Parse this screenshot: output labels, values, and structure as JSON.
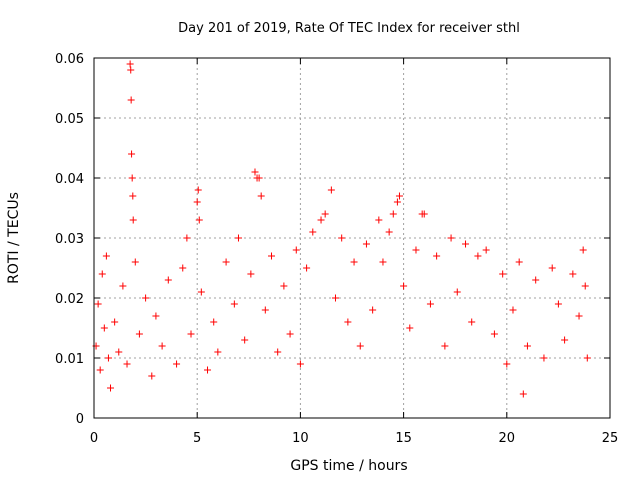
{
  "chart_data": {
    "type": "scatter",
    "title": "Day 201 of 2019, Rate Of TEC Index for receiver sthl",
    "xlabel": "GPS time / hours",
    "ylabel": "ROTI / TECUs",
    "xlim": [
      0,
      25
    ],
    "ylim": [
      0,
      0.06
    ],
    "x_ticks": [
      0,
      5,
      10,
      15,
      20,
      25
    ],
    "x_tick_labels": [
      "0",
      "5",
      "10",
      "15",
      "20",
      "25"
    ],
    "y_ticks": [
      0,
      0.01,
      0.02,
      0.03,
      0.04,
      0.05,
      0.06
    ],
    "y_tick_labels": [
      "0",
      "0.01",
      "0.02",
      "0.03",
      "0.04",
      "0.05",
      "0.06"
    ],
    "grid": true,
    "marker": "+",
    "series": [
      {
        "name": "ROTI",
        "color": "#ff0000",
        "points": [
          [
            0.1,
            0.012
          ],
          [
            0.2,
            0.019
          ],
          [
            0.3,
            0.008
          ],
          [
            0.4,
            0.024
          ],
          [
            0.5,
            0.015
          ],
          [
            0.6,
            0.027
          ],
          [
            0.7,
            0.01
          ],
          [
            0.8,
            0.005
          ],
          [
            1.0,
            0.016
          ],
          [
            1.2,
            0.011
          ],
          [
            1.4,
            0.022
          ],
          [
            1.6,
            0.009
          ],
          [
            1.75,
            0.059
          ],
          [
            1.78,
            0.058
          ],
          [
            1.8,
            0.053
          ],
          [
            1.82,
            0.044
          ],
          [
            1.85,
            0.04
          ],
          [
            1.88,
            0.037
          ],
          [
            1.9,
            0.033
          ],
          [
            2.0,
            0.026
          ],
          [
            2.2,
            0.014
          ],
          [
            2.5,
            0.02
          ],
          [
            2.8,
            0.007
          ],
          [
            3.0,
            0.017
          ],
          [
            3.3,
            0.012
          ],
          [
            3.6,
            0.023
          ],
          [
            4.0,
            0.009
          ],
          [
            4.3,
            0.025
          ],
          [
            4.5,
            0.03
          ],
          [
            4.7,
            0.014
          ],
          [
            5.0,
            0.036
          ],
          [
            5.05,
            0.038
          ],
          [
            5.1,
            0.033
          ],
          [
            5.2,
            0.021
          ],
          [
            5.5,
            0.008
          ],
          [
            5.8,
            0.016
          ],
          [
            6.0,
            0.011
          ],
          [
            6.4,
            0.026
          ],
          [
            6.8,
            0.019
          ],
          [
            7.0,
            0.03
          ],
          [
            7.3,
            0.013
          ],
          [
            7.6,
            0.024
          ],
          [
            7.8,
            0.041
          ],
          [
            7.9,
            0.04
          ],
          [
            8.0,
            0.04
          ],
          [
            8.1,
            0.037
          ],
          [
            8.3,
            0.018
          ],
          [
            8.6,
            0.027
          ],
          [
            8.9,
            0.011
          ],
          [
            9.2,
            0.022
          ],
          [
            9.5,
            0.014
          ],
          [
            9.8,
            0.028
          ],
          [
            10.0,
            0.009
          ],
          [
            10.3,
            0.025
          ],
          [
            10.6,
            0.031
          ],
          [
            11.0,
            0.033
          ],
          [
            11.2,
            0.034
          ],
          [
            11.5,
            0.038
          ],
          [
            11.7,
            0.02
          ],
          [
            12.0,
            0.03
          ],
          [
            12.3,
            0.016
          ],
          [
            12.6,
            0.026
          ],
          [
            12.9,
            0.012
          ],
          [
            13.2,
            0.029
          ],
          [
            13.5,
            0.018
          ],
          [
            13.8,
            0.033
          ],
          [
            14.0,
            0.026
          ],
          [
            14.3,
            0.031
          ],
          [
            14.5,
            0.034
          ],
          [
            14.7,
            0.036
          ],
          [
            14.8,
            0.037
          ],
          [
            15.0,
            0.022
          ],
          [
            15.3,
            0.015
          ],
          [
            15.6,
            0.028
          ],
          [
            15.9,
            0.034
          ],
          [
            16.0,
            0.034
          ],
          [
            16.3,
            0.019
          ],
          [
            16.6,
            0.027
          ],
          [
            17.0,
            0.012
          ],
          [
            17.3,
            0.03
          ],
          [
            17.6,
            0.021
          ],
          [
            18.0,
            0.029
          ],
          [
            18.3,
            0.016
          ],
          [
            18.6,
            0.027
          ],
          [
            19.0,
            0.028
          ],
          [
            19.4,
            0.014
          ],
          [
            19.8,
            0.024
          ],
          [
            20.0,
            0.009
          ],
          [
            20.3,
            0.018
          ],
          [
            20.6,
            0.026
          ],
          [
            20.8,
            0.004
          ],
          [
            21.0,
            0.012
          ],
          [
            21.4,
            0.023
          ],
          [
            21.8,
            0.01
          ],
          [
            22.2,
            0.025
          ],
          [
            22.5,
            0.019
          ],
          [
            22.8,
            0.013
          ],
          [
            23.2,
            0.024
          ],
          [
            23.5,
            0.017
          ],
          [
            23.7,
            0.028
          ],
          [
            23.8,
            0.022
          ],
          [
            23.9,
            0.01
          ]
        ]
      }
    ]
  }
}
